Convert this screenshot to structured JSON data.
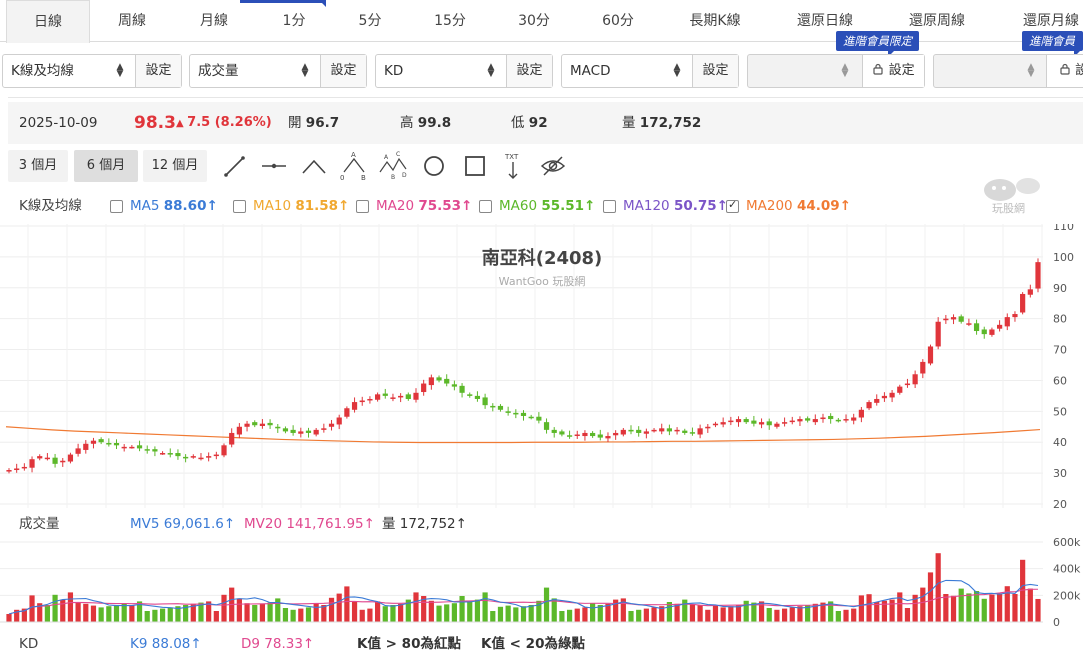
{
  "tabs": [
    {
      "label": "日線",
      "active": true
    },
    {
      "label": "周線"
    },
    {
      "label": "月線"
    },
    {
      "label": "1分"
    },
    {
      "label": "5分"
    },
    {
      "label": "15分"
    },
    {
      "label": "30分"
    },
    {
      "label": "60分"
    },
    {
      "label": "長期K線"
    },
    {
      "label": "還原日線"
    },
    {
      "label": "還原周線"
    },
    {
      "label": "還原月線"
    }
  ],
  "indicators": [
    {
      "value": "K線及均線",
      "button": "設定"
    },
    {
      "value": "成交量",
      "button": "設定"
    },
    {
      "value": "KD",
      "button": "設定"
    },
    {
      "value": "MACD",
      "button": "設定"
    },
    {
      "value": "",
      "button": "設定",
      "locked": true,
      "badge": "進階會員限定"
    },
    {
      "value": "",
      "button": "設",
      "locked": true,
      "badge": "進階會員限"
    }
  ],
  "quote": {
    "date": "2025-10-09",
    "price": "98.3",
    "change": "7.5 (8.26%)",
    "open_label": "開",
    "open": "96.7",
    "high_label": "高",
    "high": "99.8",
    "low_label": "低",
    "low": "92",
    "volume_label": "量",
    "volume": "172,752"
  },
  "ranges": [
    {
      "label": "3 個月"
    },
    {
      "label": "6 個月",
      "active": true
    },
    {
      "label": "12 個月"
    }
  ],
  "tools": [
    "line-tool-icon",
    "horizontal-line-icon",
    "angle-tool-icon",
    "abc-pattern-icon",
    "abcd-pattern-icon",
    "circle-tool-icon",
    "rectangle-tool-icon",
    "text-tool-icon",
    "hide-drawings-icon"
  ],
  "text_tool_label": "TXT",
  "abc_labels": [
    "A",
    "B",
    "C",
    "D"
  ],
  "abc_zero": "0",
  "ma_legend": {
    "label": "K線及均線",
    "items": [
      {
        "name": "MA5",
        "value": "88.60↑",
        "color": "#3b7bd6",
        "checked": false
      },
      {
        "name": "MA10",
        "value": "81.58↑",
        "color": "#f0a830",
        "checked": false
      },
      {
        "name": "MA20",
        "value": "75.53↑",
        "color": "#e0498f",
        "checked": false
      },
      {
        "name": "MA60",
        "value": "55.51↑",
        "color": "#5cb82a",
        "checked": false
      },
      {
        "name": "MA120",
        "value": "50.75↑",
        "color": "#7b55c7",
        "checked": false
      },
      {
        "name": "MA200",
        "value": "44.09↑",
        "color": "#f07a33",
        "checked": true
      }
    ]
  },
  "watermark_text": "玩股網",
  "chart_data": {
    "type": "candlestick",
    "title": "南亞科(2408)",
    "subtitle": "WantGoo 玩股網",
    "ylim": [
      20,
      110
    ],
    "yticks": [
      20,
      30,
      40,
      50,
      60,
      70,
      80,
      90,
      100,
      110
    ],
    "closes": [
      31.0,
      31.5,
      32.0,
      34.5,
      35.5,
      35.0,
      33.0,
      34.0,
      36.0,
      38.0,
      39.5,
      40.5,
      40.0,
      39.5,
      39.0,
      38.5,
      38.5,
      38.0,
      37.5,
      37.0,
      36.5,
      36.0,
      35.5,
      35.0,
      35.5,
      35.0,
      35.5,
      36.0,
      39.0,
      43.0,
      45.0,
      46.0,
      45.5,
      46.0,
      45.5,
      44.5,
      43.5,
      43.0,
      43.5,
      43.0,
      44.0,
      44.5,
      46.0,
      48.0,
      51.0,
      53.0,
      53.5,
      54.0,
      55.5,
      55.0,
      54.5,
      55.0,
      54.0,
      56.0,
      59.0,
      61.0,
      60.0,
      59.0,
      58.0,
      56.0,
      55.0,
      54.0,
      52.0,
      51.5,
      50.5,
      49.5,
      49.0,
      48.5,
      48.0,
      47.0,
      44.0,
      43.0,
      42.5,
      42.0,
      42.5,
      43.0,
      42.0,
      41.5,
      42.0,
      43.0,
      44.0,
      43.5,
      43.0,
      43.5,
      44.0,
      44.5,
      43.5,
      44.0,
      43.0,
      43.0,
      44.5,
      45.0,
      46.0,
      46.5,
      47.0,
      47.5,
      46.5,
      46.0,
      46.5,
      45.5,
      46.0,
      46.5,
      47.0,
      47.5,
      47.0,
      47.5,
      48.0,
      47.5,
      47.0,
      47.5,
      48.0,
      50.5,
      53.0,
      54.0,
      55.0,
      56.0,
      58.0,
      59.0,
      62.0,
      66.0,
      71.0,
      79.0,
      80.0,
      80.5,
      79.0,
      78.5,
      76.0,
      75.0,
      76.5,
      78.0,
      80.5,
      81.5,
      88.0,
      89.5,
      98.3
    ],
    "ma200": [
      45.0,
      44.5,
      44.0,
      43.6,
      43.3,
      43.0,
      42.7,
      42.4,
      42.1,
      41.8,
      41.5,
      41.2,
      40.9,
      40.7,
      40.5,
      40.3,
      40.1,
      40.0,
      39.9,
      39.9,
      39.9,
      39.9,
      39.9,
      40.0,
      40.0,
      40.0,
      40.1,
      40.1,
      40.2,
      40.3,
      40.3,
      40.4,
      40.5,
      40.6,
      40.7,
      40.8,
      40.9,
      41.1,
      41.3,
      41.6,
      41.9,
      42.3,
      42.7,
      43.1,
      43.6,
      44.1
    ],
    "volume_axis": [
      "600k",
      "400k",
      "200k",
      "0"
    ],
    "volume_max": 600000
  },
  "volume_legend": {
    "label": "成交量",
    "mv5": "MV5 69,061.6↑",
    "mv20": "MV20 141,761.95↑",
    "vol": "量 172,752↑"
  },
  "kd_legend": {
    "label": "KD",
    "k": "K9 88.08↑",
    "d": "D9 78.33↑",
    "k_red": "K值 > 80為紅點",
    "k_green": "K值 < 20為綠點"
  }
}
